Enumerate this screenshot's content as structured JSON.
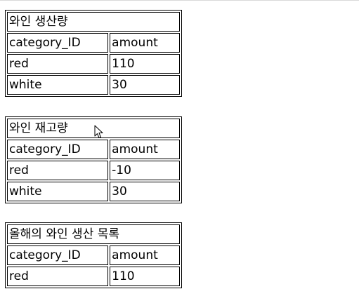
{
  "tables": [
    {
      "caption": "와인 생산량",
      "headers": [
        "category_ID",
        "amount"
      ],
      "rows": [
        [
          "red",
          "110"
        ],
        [
          "white",
          "30"
        ]
      ]
    },
    {
      "caption": "와인 재고량",
      "headers": [
        "category_ID",
        "amount"
      ],
      "rows": [
        [
          "red",
          "-10"
        ],
        [
          "white",
          "30"
        ]
      ]
    },
    {
      "caption": "올해의 와인 생산 목록",
      "headers": [
        "category_ID",
        "amount"
      ],
      "rows": [
        [
          "red",
          "110"
        ]
      ]
    }
  ],
  "cursor_icon": "mouse-pointer-icon"
}
